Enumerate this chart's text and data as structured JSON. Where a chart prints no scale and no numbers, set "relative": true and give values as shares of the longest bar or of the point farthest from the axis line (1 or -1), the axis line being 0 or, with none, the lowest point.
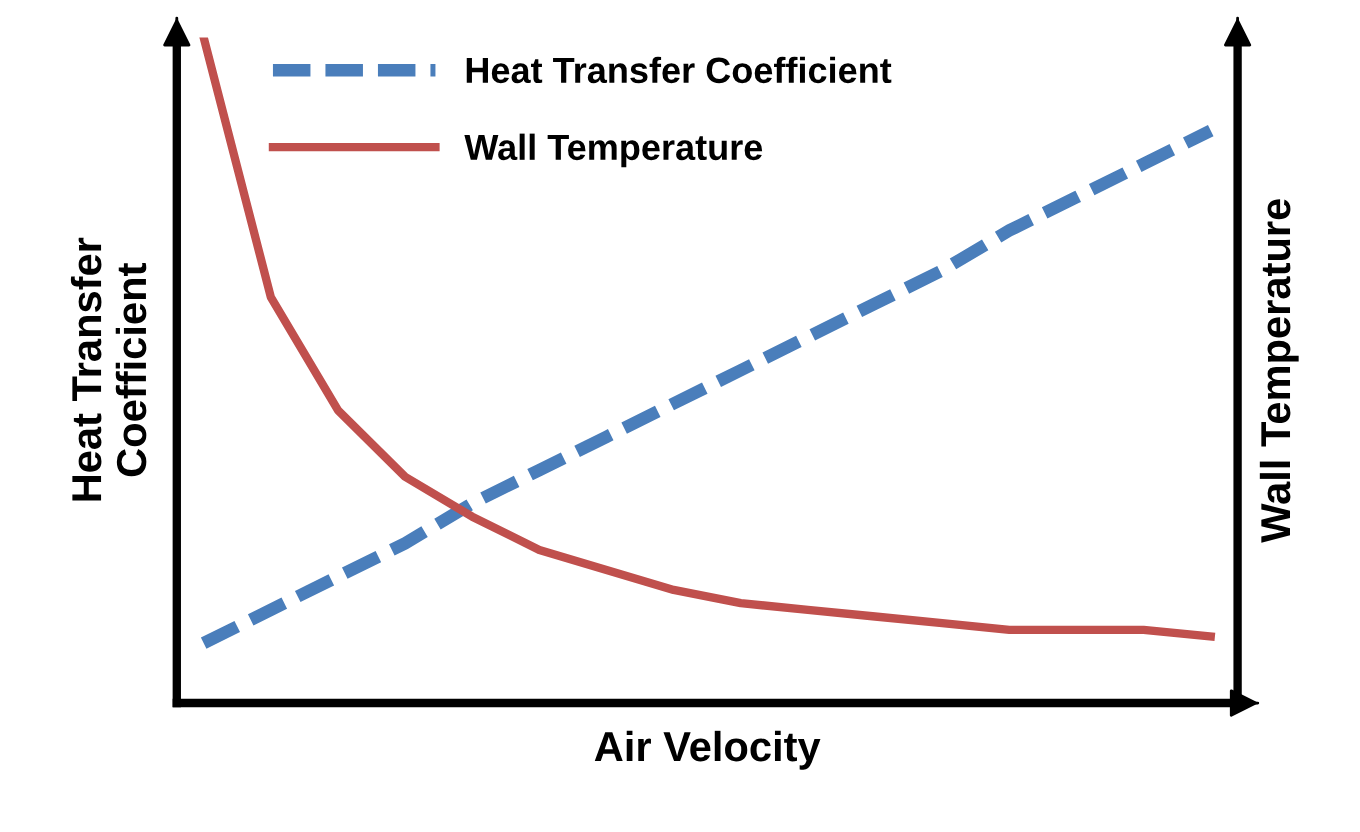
{
  "chart_data": {
    "type": "line",
    "relative": true,
    "xlabel": "Air Velocity",
    "ylabel": "Heat Transfer\nCoefficient",
    "y2label": "Wall Temperature",
    "categories": [
      null,
      null,
      null,
      null,
      null,
      null,
      null,
      null,
      null,
      null,
      null,
      null,
      null,
      null,
      null,
      null
    ],
    "series": [
      {
        "name": "Heat Transfer Coefficient",
        "color": "#4a7ebb",
        "line_style": "dashed",
        "values": [
          0.09,
          0.14,
          0.19,
          0.24,
          0.3,
          0.35,
          0.4,
          0.45,
          0.5,
          0.55,
          0.6,
          0.65,
          0.71,
          0.76,
          0.81,
          0.86
        ]
      },
      {
        "name": "Wall Temperature",
        "color": "#c0504d",
        "line_style": "solid",
        "values": [
          1.0,
          0.61,
          0.44,
          0.34,
          0.28,
          0.23,
          0.2,
          0.17,
          0.15,
          0.14,
          0.13,
          0.12,
          0.11,
          0.11,
          0.11,
          0.1
        ]
      }
    ],
    "legend": "top left",
    "marker": "none"
  }
}
